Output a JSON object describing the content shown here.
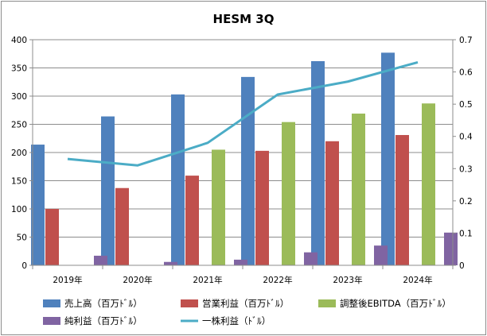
{
  "chart_data": {
    "type": "bar",
    "title": "HESM 3Q",
    "categories": [
      "2019年",
      "2020年",
      "2021年",
      "2022年",
      "2023年",
      "2024年"
    ],
    "y_left": {
      "min": 0,
      "max": 400,
      "ticks": [
        "0",
        "50",
        "100",
        "150",
        "200",
        "250",
        "300",
        "350",
        "400"
      ]
    },
    "y_right": {
      "min": 0,
      "max": 0.7,
      "ticks": [
        "0",
        "0.1",
        "0.2",
        "0.3",
        "0.4",
        "0.5",
        "0.6",
        "0.7"
      ]
    },
    "series": [
      {
        "name": "売上高（百万ﾄﾞﾙ）",
        "type": "bar",
        "axis": "left",
        "color": "#4f81bd",
        "values": [
          214,
          264,
          303,
          334,
          362,
          377
        ]
      },
      {
        "name": "営業利益（百万ﾄﾞﾙ）",
        "type": "bar",
        "axis": "left",
        "color": "#c0504d",
        "values": [
          100,
          137,
          159,
          203,
          220,
          231
        ]
      },
      {
        "name": "調整後EBITDA（百万ﾄﾞﾙ）",
        "type": "bar",
        "axis": "left",
        "color": "#9bbb59",
        "values": [
          null,
          null,
          205,
          254,
          269,
          287
        ]
      },
      {
        "name": "純利益（百万ﾄﾞﾙ）",
        "type": "bar",
        "axis": "left",
        "color": "#8064a2",
        "values": [
          17,
          6,
          10,
          23,
          35,
          58
        ]
      },
      {
        "name": "一株利益（ﾄﾞﾙ）",
        "type": "line",
        "axis": "right",
        "color": "#4bacc6",
        "values": [
          0.33,
          0.31,
          0.38,
          0.53,
          0.57,
          0.63
        ]
      }
    ],
    "legend": {
      "position": "bottom",
      "rows": [
        [
          "売上高（百万ﾄﾞﾙ）",
          "営業利益（百万ﾄﾞﾙ）",
          "調整後EBITDA（百万ﾄﾞﾙ）"
        ],
        [
          "純利益（百万ﾄﾞﾙ）",
          "一株利益（ﾄﾞﾙ）"
        ]
      ]
    },
    "grid": {
      "horizontal": true,
      "vertical": false
    }
  }
}
